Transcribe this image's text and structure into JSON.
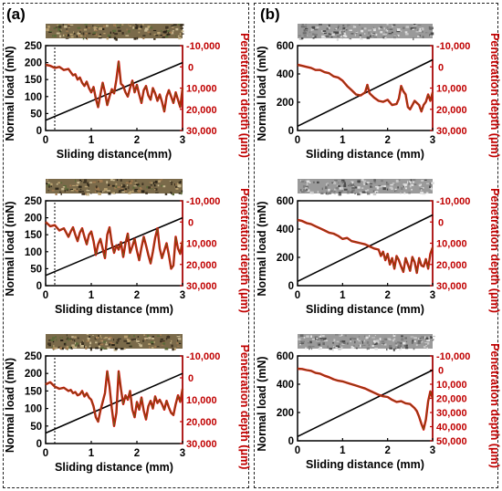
{
  "panels": [
    {
      "letter": "(a)"
    },
    {
      "letter": "(b)"
    }
  ],
  "colors": {
    "black": "#000000",
    "red": "#c00000",
    "depth": "#e00000",
    "trace": "#6e5a1a",
    "texture_a": "#7a6a4a",
    "texture_b": "#9a9a9a"
  },
  "chart_data": [
    {
      "type": "line",
      "panel": "(a)",
      "xlabel": "Sliding distance(mm)",
      "ylabel": "Normal load (mN)",
      "ylabel_right": "Penetration depth (μm)",
      "xlim": [
        0,
        3
      ],
      "ylim": [
        0,
        250
      ],
      "ylim_right": [
        30000,
        -10000
      ],
      "xticks": [
        "0",
        "1",
        "2",
        "3"
      ],
      "yticks": [
        "0",
        "50",
        "100",
        "150",
        "200",
        "250"
      ],
      "yticks_right": [
        "-10,000",
        "0",
        "10,000",
        "20,000",
        "30,000"
      ],
      "yticks_right_values": [
        -10000,
        0,
        10000,
        20000,
        30000
      ],
      "dashed_marker_x": 0.2,
      "series": [
        {
          "axis": "left",
          "x": [
            0,
            3
          ],
          "values": [
            30,
            200
          ]
        },
        {
          "axis": "right",
          "x": [
            0,
            0.1,
            0.2,
            0.3,
            0.4,
            0.5,
            0.55,
            0.6,
            0.65,
            0.7,
            0.75,
            0.8,
            0.85,
            0.9,
            0.95,
            1.0,
            1.05,
            1.1,
            1.15,
            1.2,
            1.25,
            1.3,
            1.35,
            1.4,
            1.45,
            1.5,
            1.55,
            1.6,
            1.65,
            1.7,
            1.75,
            1.8,
            1.85,
            1.9,
            1.95,
            2.0,
            2.05,
            2.1,
            2.15,
            2.2,
            2.25,
            2.3,
            2.35,
            2.4,
            2.45,
            2.5,
            2.55,
            2.6,
            2.65,
            2.7,
            2.75,
            2.8,
            2.85,
            2.9,
            2.95,
            3.0
          ],
          "values": [
            -1000,
            -500,
            500,
            0,
            1500,
            1000,
            2500,
            4000,
            3500,
            6000,
            5000,
            7500,
            9000,
            7000,
            10000,
            12000,
            9500,
            15000,
            19000,
            13000,
            7500,
            12000,
            18000,
            14000,
            10500,
            12500,
            6000,
            -2500,
            8000,
            9000,
            12000,
            14000,
            10000,
            6500,
            12000,
            8500,
            13000,
            17000,
            11000,
            9000,
            13500,
            15500,
            10000,
            12500,
            16000,
            13000,
            16500,
            21000,
            14000,
            11000,
            14000,
            17000,
            12000,
            15500,
            19000,
            10000
          ]
        }
      ]
    },
    {
      "type": "line",
      "panel": "(a)",
      "xlabel": "Sliding distance (mm)",
      "ylabel": "Normal load (mN)",
      "ylabel_right": "Penetration depth (μm)",
      "xlim": [
        0,
        3
      ],
      "ylim": [
        0,
        250
      ],
      "ylim_right": [
        30000,
        -10000
      ],
      "xticks": [
        "0",
        "1",
        "2",
        "3"
      ],
      "yticks": [
        "0",
        "50",
        "100",
        "150",
        "200",
        "250"
      ],
      "yticks_right": [
        "-10,000",
        "0",
        "10,000",
        "20,000",
        "30,000"
      ],
      "yticks_right_values": [
        -10000,
        0,
        10000,
        20000,
        30000
      ],
      "dashed_marker_x": 0.2,
      "series": [
        {
          "axis": "left",
          "x": [
            0,
            3
          ],
          "values": [
            30,
            200
          ]
        },
        {
          "axis": "right",
          "x": [
            0,
            0.1,
            0.2,
            0.3,
            0.4,
            0.5,
            0.55,
            0.6,
            0.65,
            0.7,
            0.75,
            0.8,
            0.85,
            0.9,
            0.95,
            1.0,
            1.05,
            1.1,
            1.15,
            1.2,
            1.25,
            1.3,
            1.35,
            1.4,
            1.45,
            1.5,
            1.55,
            1.6,
            1.65,
            1.7,
            1.75,
            1.8,
            1.85,
            1.9,
            1.95,
            2.0,
            2.05,
            2.1,
            2.15,
            2.2,
            2.25,
            2.3,
            2.35,
            2.4,
            2.45,
            2.5,
            2.55,
            2.6,
            2.65,
            2.7,
            2.75,
            2.8,
            2.85,
            2.9,
            2.95,
            3.0
          ],
          "values": [
            0,
            2000,
            1500,
            4000,
            3000,
            7000,
            4500,
            2500,
            6000,
            9000,
            5000,
            3000,
            7000,
            10500,
            6000,
            4500,
            9000,
            15500,
            10500,
            8000,
            12500,
            17000,
            6000,
            2500,
            10000,
            14500,
            11000,
            13000,
            9500,
            16500,
            10000,
            5500,
            14500,
            11500,
            8000,
            13500,
            18000,
            12000,
            7000,
            11000,
            15500,
            19500,
            14000,
            7500,
            3000,
            12500,
            17000,
            13500,
            10000,
            15500,
            22000,
            20500,
            7000,
            12500,
            15000,
            9000
          ]
        }
      ]
    },
    {
      "type": "line",
      "panel": "(a)",
      "xlabel": "Sliding distance (mm)",
      "ylabel": "Normal load (mN)",
      "ylabel_right": "Penetration depth (μm)",
      "xlim": [
        0,
        3
      ],
      "ylim": [
        0,
        250
      ],
      "ylim_right": [
        30000,
        -10000
      ],
      "xticks": [
        "0",
        "1",
        "2",
        "3"
      ],
      "yticks": [
        "0",
        "50",
        "100",
        "150",
        "200",
        "250"
      ],
      "yticks_right": [
        "-10,000",
        "0",
        "10,000",
        "20,000",
        "30,000"
      ],
      "yticks_right_values": [
        -10000,
        0,
        10000,
        20000,
        30000
      ],
      "dashed_marker_x": 0.2,
      "series": [
        {
          "axis": "left",
          "x": [
            0,
            3
          ],
          "values": [
            30,
            200
          ]
        },
        {
          "axis": "right",
          "x": [
            0,
            0.1,
            0.2,
            0.3,
            0.4,
            0.5,
            0.55,
            0.6,
            0.65,
            0.7,
            0.75,
            0.8,
            0.85,
            0.9,
            0.95,
            1.0,
            1.05,
            1.1,
            1.15,
            1.2,
            1.25,
            1.3,
            1.35,
            1.4,
            1.45,
            1.5,
            1.55,
            1.6,
            1.65,
            1.7,
            1.75,
            1.8,
            1.85,
            1.9,
            1.95,
            2.0,
            2.05,
            2.1,
            2.15,
            2.2,
            2.25,
            2.3,
            2.35,
            2.4,
            2.45,
            2.5,
            2.55,
            2.6,
            2.65,
            2.7,
            2.75,
            2.8,
            2.85,
            2.9,
            2.95,
            3.0
          ],
          "values": [
            3000,
            2000,
            4000,
            5000,
            4500,
            6000,
            5500,
            7000,
            6500,
            8000,
            7500,
            6000,
            8500,
            7000,
            9000,
            10000,
            13000,
            18000,
            20000,
            15000,
            11000,
            7000,
            -3000,
            4000,
            14000,
            22000,
            16000,
            -3000,
            5000,
            12000,
            8000,
            10000,
            6000,
            14500,
            18000,
            11000,
            14500,
            9000,
            15000,
            19000,
            13000,
            10500,
            14000,
            8500,
            11500,
            10000,
            12000,
            14500,
            10500,
            13500,
            16000,
            17000,
            12000,
            8000,
            11000,
            5000
          ]
        }
      ]
    },
    {
      "type": "line",
      "panel": "(b)",
      "xlabel": "Sliding distance (mm)",
      "ylabel": "Normal load (mN)",
      "ylabel_right": "Penetration depth (μm)",
      "xlim": [
        0,
        3
      ],
      "ylim": [
        0,
        600
      ],
      "ylim_right": [
        30000,
        -10000
      ],
      "xticks": [
        "0",
        "1",
        "2",
        "3"
      ],
      "yticks": [
        "0",
        "200",
        "400",
        "600"
      ],
      "yticks_right": [
        "-10,000",
        "0",
        "10,000",
        "20,000",
        "30,000"
      ],
      "yticks_right_values": [
        -10000,
        0,
        10000,
        20000,
        30000
      ],
      "series": [
        {
          "axis": "left",
          "x": [
            0,
            3
          ],
          "values": [
            30,
            500
          ]
        },
        {
          "axis": "right",
          "x": [
            0,
            0.1,
            0.2,
            0.3,
            0.4,
            0.5,
            0.6,
            0.7,
            0.8,
            0.9,
            1.0,
            1.1,
            1.2,
            1.3,
            1.4,
            1.5,
            1.55,
            1.6,
            1.7,
            1.8,
            1.9,
            2.0,
            2.1,
            2.2,
            2.25,
            2.3,
            2.35,
            2.4,
            2.45,
            2.5,
            2.6,
            2.7,
            2.75,
            2.8,
            2.85,
            2.9,
            2.95,
            3.0
          ],
          "values": [
            -1000,
            -500,
            0,
            500,
            1500,
            1500,
            2500,
            3000,
            4500,
            5000,
            6500,
            9000,
            11000,
            13000,
            13500,
            12000,
            8500,
            12500,
            14500,
            16000,
            16500,
            15500,
            18000,
            17500,
            15000,
            9000,
            11500,
            13000,
            19000,
            20000,
            16000,
            18000,
            21000,
            18000,
            16500,
            13000,
            16000,
            12000
          ]
        }
      ]
    },
    {
      "type": "line",
      "panel": "(b)",
      "xlabel": "Sliding distance (mm)",
      "ylabel": "Normal load (mN)",
      "ylabel_right": "Penetration depth (μm)",
      "xlim": [
        0,
        3
      ],
      "ylim": [
        0,
        600
      ],
      "ylim_right": [
        30000,
        -10000
      ],
      "xticks": [
        "0",
        "1",
        "2",
        "3"
      ],
      "yticks": [
        "0",
        "200",
        "400",
        "600"
      ],
      "yticks_right": [
        "-10,000",
        "0",
        "10,000",
        "20,000",
        "30,000"
      ],
      "yticks_right_values": [
        -10000,
        0,
        10000,
        20000,
        30000
      ],
      "series": [
        {
          "axis": "left",
          "x": [
            0,
            3
          ],
          "values": [
            30,
            500
          ]
        },
        {
          "axis": "right",
          "x": [
            0,
            0.1,
            0.2,
            0.3,
            0.4,
            0.5,
            0.6,
            0.7,
            0.8,
            0.9,
            1.0,
            1.1,
            1.2,
            1.3,
            1.4,
            1.5,
            1.6,
            1.7,
            1.8,
            1.85,
            1.9,
            1.95,
            2.0,
            2.05,
            2.1,
            2.15,
            2.2,
            2.25,
            2.3,
            2.35,
            2.4,
            2.45,
            2.5,
            2.55,
            2.6,
            2.65,
            2.7,
            2.75,
            2.8,
            2.85,
            2.9,
            2.95,
            3.0
          ],
          "values": [
            -1000,
            -500,
            500,
            1000,
            2000,
            3000,
            4000,
            5000,
            5500,
            6500,
            8000,
            7500,
            9000,
            9500,
            10000,
            10500,
            11500,
            12500,
            13000,
            16000,
            14000,
            18000,
            15000,
            20000,
            17000,
            22000,
            16000,
            18000,
            21000,
            23500,
            17000,
            20000,
            23000,
            16500,
            19000,
            24000,
            17000,
            20500,
            21000,
            17500,
            22000,
            15000,
            12000
          ]
        }
      ]
    },
    {
      "type": "line",
      "panel": "(b)",
      "xlabel": "Sliding distance (mm)",
      "ylabel": "Normal load (mN)",
      "ylabel_right": "Penetration depth (μm)",
      "xlim": [
        0,
        3
      ],
      "ylim": [
        0,
        600
      ],
      "ylim_right": [
        50000,
        -10000
      ],
      "xticks": [
        "0",
        "1",
        "2",
        "3"
      ],
      "yticks": [
        "0",
        "200",
        "400",
        "600"
      ],
      "yticks_right": [
        "-10,000",
        "0",
        "10,000",
        "20,000",
        "30,000",
        "40,000",
        "50,000"
      ],
      "yticks_right_values": [
        -10000,
        0,
        10000,
        20000,
        30000,
        40000,
        50000
      ],
      "series": [
        {
          "axis": "left",
          "x": [
            0,
            3
          ],
          "values": [
            30,
            500
          ]
        },
        {
          "axis": "right",
          "x": [
            0,
            0.1,
            0.2,
            0.3,
            0.4,
            0.5,
            0.6,
            0.7,
            0.8,
            0.9,
            1.0,
            1.1,
            1.2,
            1.3,
            1.4,
            1.5,
            1.6,
            1.7,
            1.8,
            1.9,
            2.0,
            2.1,
            2.2,
            2.3,
            2.4,
            2.5,
            2.6,
            2.65,
            2.7,
            2.75,
            2.8,
            2.85,
            2.9,
            2.95,
            3.0
          ],
          "values": [
            -1000,
            -800,
            0,
            500,
            2000,
            2500,
            4000,
            5000,
            6500,
            7500,
            8000,
            9000,
            10000,
            11000,
            12000,
            13000,
            14500,
            16000,
            17500,
            18500,
            19000,
            21000,
            22500,
            22000,
            23500,
            24000,
            27000,
            29000,
            33000,
            38000,
            42000,
            35000,
            22000,
            15000,
            20000
          ]
        }
      ]
    }
  ]
}
